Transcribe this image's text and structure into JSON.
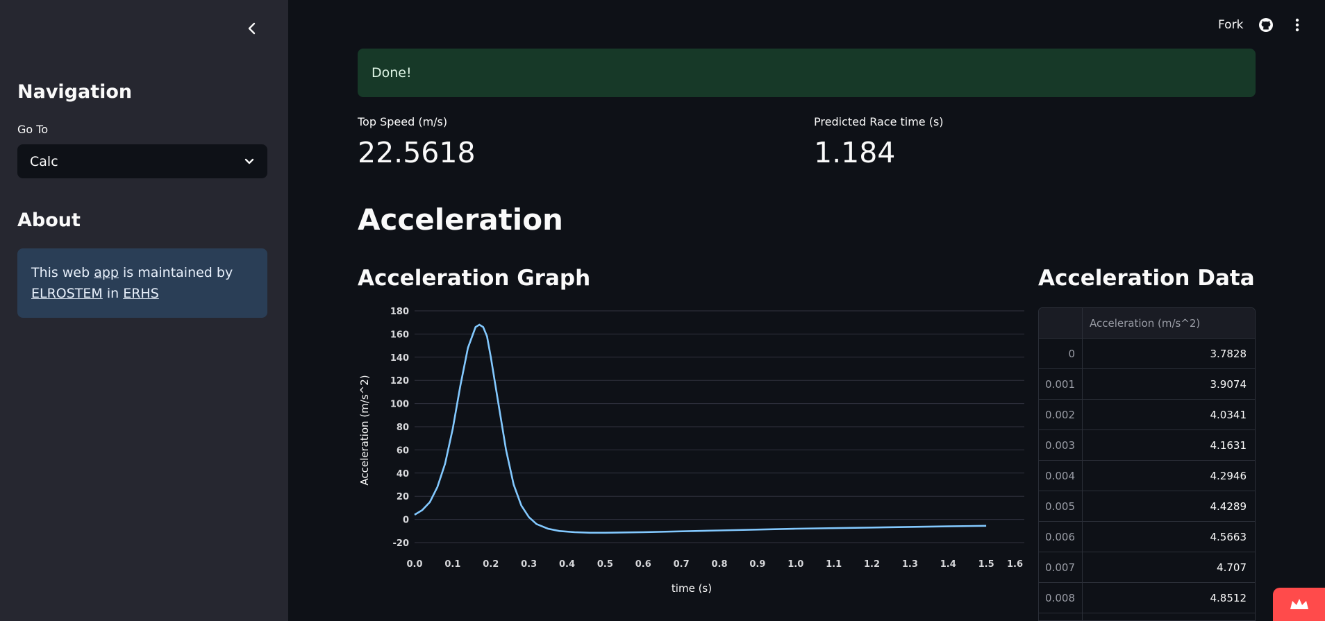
{
  "sidebar": {
    "navigation_title": "Navigation",
    "goto_label": "Go To",
    "select_value": "Calc",
    "about_title": "About",
    "about": {
      "t1": "This web ",
      "link_app": "app",
      "t2": " is maintained by ",
      "link_org": "ELROSTEM",
      "t3": " in ",
      "link_school": "ERHS"
    }
  },
  "topbar": {
    "fork_label": "Fork"
  },
  "status": {
    "message": "Done!"
  },
  "metrics": [
    {
      "label": "Top Speed (m/s)",
      "value": "22.5618"
    },
    {
      "label": "Predicted Race time (s)",
      "value": "1.184"
    }
  ],
  "headings": {
    "section": "Acceleration",
    "graph": "Acceleration Graph",
    "data": "Acceleration Data"
  },
  "chart_data": {
    "type": "line",
    "xlabel": "time (s)",
    "ylabel": "Acceleration (m/s^2)",
    "xlim": [
      0,
      1.6
    ],
    "ylim": [
      -20,
      180
    ],
    "x_ticks": [
      "0.0",
      "0.1",
      "0.2",
      "0.3",
      "0.4",
      "0.5",
      "0.6",
      "0.7",
      "0.8",
      "0.9",
      "1.0",
      "1.1",
      "1.2",
      "1.3",
      "1.4",
      "1.5",
      "1.6"
    ],
    "y_ticks": [
      "180",
      "160",
      "140",
      "120",
      "100",
      "80",
      "60",
      "40",
      "20",
      "0",
      "-20"
    ],
    "line_color": "#83c9ff",
    "series": [
      {
        "x": [
          0,
          0.02,
          0.04,
          0.06,
          0.08,
          0.1,
          0.12,
          0.14,
          0.16,
          0.17,
          0.18,
          0.19,
          0.2,
          0.22,
          0.24,
          0.26,
          0.28,
          0.3,
          0.32,
          0.35,
          0.38,
          0.42,
          0.46,
          0.5,
          0.6,
          0.8,
          1.0,
          1.2,
          1.4,
          1.5
        ],
        "y": [
          4,
          8,
          15,
          28,
          48,
          78,
          115,
          148,
          166,
          168,
          166,
          158,
          140,
          100,
          60,
          30,
          12,
          2,
          -4,
          -8,
          -10,
          -11,
          -11.5,
          -11.5,
          -11,
          -9.5,
          -8,
          -7,
          -6,
          -5.5
        ]
      }
    ]
  },
  "table": {
    "header": "Acceleration (m/s^2)",
    "rows": [
      {
        "idx": "0",
        "val": "3.7828"
      },
      {
        "idx": "0.001",
        "val": "3.9074"
      },
      {
        "idx": "0.002",
        "val": "4.0341"
      },
      {
        "idx": "0.003",
        "val": "4.1631"
      },
      {
        "idx": "0.004",
        "val": "4.2946"
      },
      {
        "idx": "0.005",
        "val": "4.4289"
      },
      {
        "idx": "0.006",
        "val": "4.5663"
      },
      {
        "idx": "0.007",
        "val": "4.707"
      },
      {
        "idx": "0.008",
        "val": "4.8512"
      },
      {
        "idx": "",
        "val": ""
      }
    ]
  }
}
